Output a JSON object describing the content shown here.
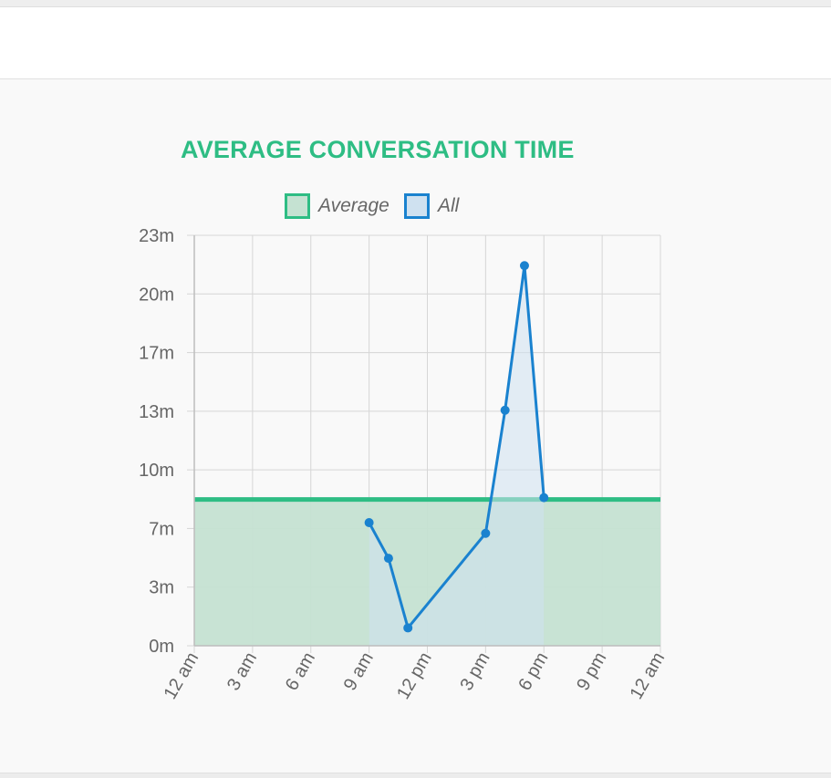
{
  "chart_data": {
    "type": "line",
    "title": "AVERAGE CONVERSATION TIME",
    "categories": [
      "12 am",
      "3 am",
      "6 am",
      "9 am",
      "12 pm",
      "3 pm",
      "6 pm",
      "9 pm",
      "12 am"
    ],
    "ytick_labels": [
      "0m",
      "3m",
      "7m",
      "10m",
      "13m",
      "17m",
      "20m",
      "23m"
    ],
    "ylim": [
      0,
      23
    ],
    "grid": true,
    "legend_position": "top",
    "series": [
      {
        "name": "Average",
        "kind": "horizontal-line-area",
        "value": 8.2,
        "x_range": [
          0,
          24
        ],
        "stroke": "#2ebd84",
        "fill": "#c5e2d2"
      },
      {
        "name": "All",
        "kind": "line-area",
        "x": [
          9,
          10,
          11,
          15,
          16,
          17,
          18
        ],
        "values": [
          6.9,
          4.9,
          1.0,
          6.3,
          13.2,
          21.3,
          8.3
        ],
        "stroke": "#1a82cf",
        "fill": "#cfe1f0"
      }
    ]
  },
  "colors": {
    "title": "#2ebd84",
    "average": "#2ebd84",
    "all": "#1a82cf",
    "grid": "#d6d6d6",
    "axis_text": "#666666"
  }
}
